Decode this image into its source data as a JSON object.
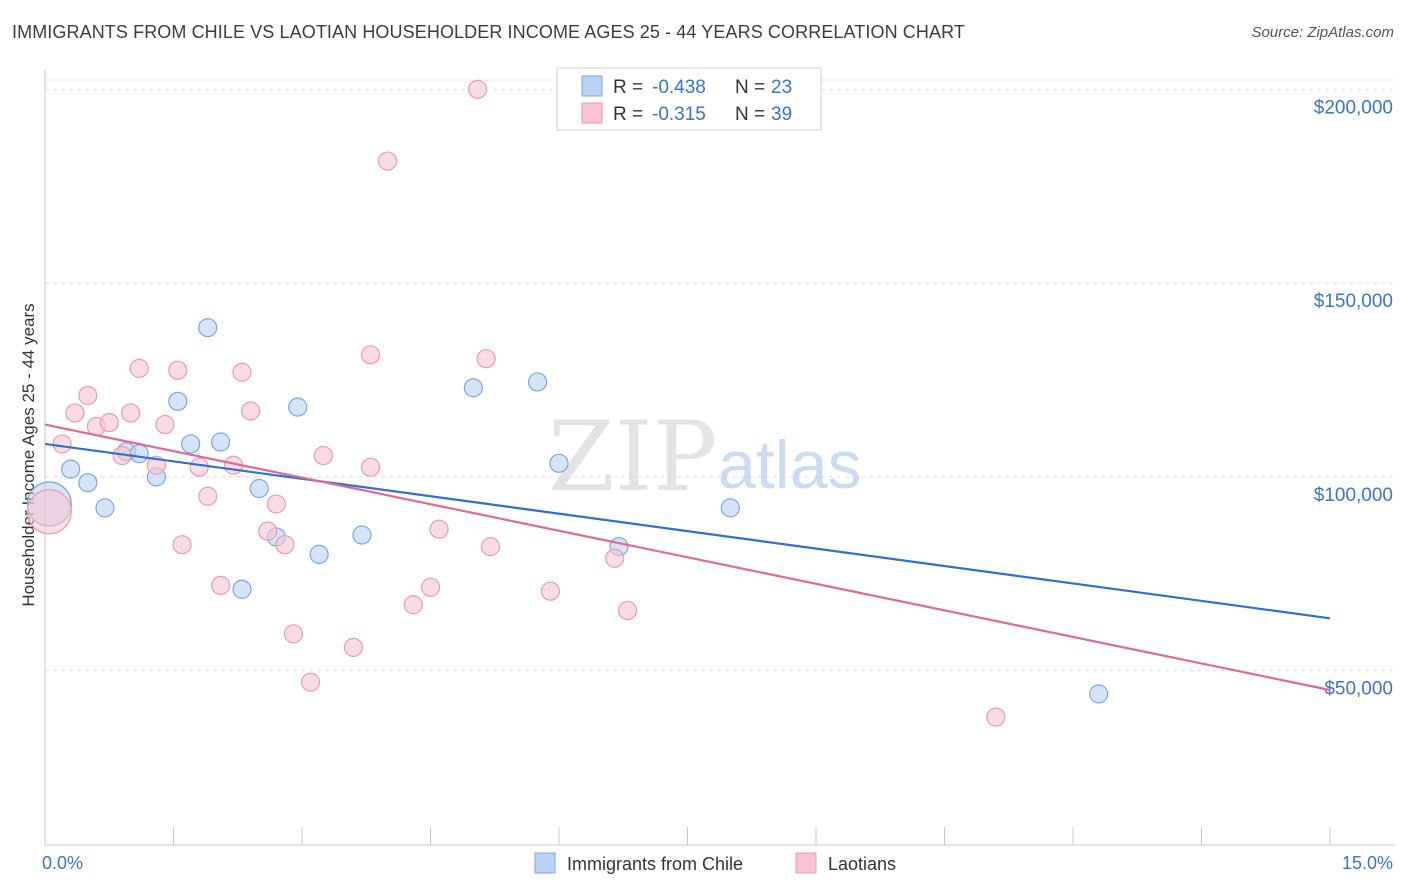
{
  "title": "IMMIGRANTS FROM CHILE VS LAOTIAN HOUSEHOLDER INCOME AGES 25 - 44 YEARS CORRELATION CHART",
  "source": "Source: ZipAtlas.com",
  "watermark": {
    "zip": "ZIP",
    "atlas": "atlas"
  },
  "colors": {
    "blue_fill": "#b9d2f3",
    "blue_stroke": "#7aa6e0",
    "blue_line": "#2f6fd0",
    "pink_fill": "#f8c4d3",
    "pink_stroke": "#e89ab2",
    "pink_line": "#e0679a",
    "grid": "#dddddd",
    "tick_text": "#3a73c8"
  },
  "legend": {
    "rows": [
      {
        "r_label": "R =",
        "r_value": "-0.438",
        "n_label": "N =",
        "n_value": "23",
        "series": "blue"
      },
      {
        "r_label": "R =",
        "r_value": "-0.315",
        "n_label": "N =",
        "n_value": "39",
        "series": "pink"
      }
    ]
  },
  "chart_data": {
    "type": "scatter",
    "title": "IMMIGRANTS FROM CHILE VS LAOTIAN HOUSEHOLDER INCOME AGES 25 - 44 YEARS CORRELATION CHART",
    "xlabel": "",
    "ylabel": "Householder Income Ages 25 - 44 years",
    "xlim": [
      0,
      15
    ],
    "ylim": [
      5000,
      205000
    ],
    "x_tick_labels": [
      "0.0%",
      "15.0%"
    ],
    "y_ticks": [
      50000,
      100000,
      150000,
      200000
    ],
    "y_tick_labels": [
      "$50,000",
      "$100,000",
      "$150,000",
      "$200,000"
    ],
    "grid": true,
    "legend_position": "bottom-center",
    "series": [
      {
        "name": "Immigrants from Chile",
        "color": "#b9d2f3",
        "trend": {
          "x": [
            0.0,
            15.0
          ],
          "y": [
            108500,
            63500
          ]
        },
        "points": [
          {
            "x": 0.05,
            "y": 93000,
            "big": true
          },
          {
            "x": 0.3,
            "y": 102000
          },
          {
            "x": 0.5,
            "y": 98500
          },
          {
            "x": 0.7,
            "y": 92000
          },
          {
            "x": 0.95,
            "y": 106500
          },
          {
            "x": 1.1,
            "y": 106000
          },
          {
            "x": 1.3,
            "y": 100000
          },
          {
            "x": 1.55,
            "y": 119500
          },
          {
            "x": 1.7,
            "y": 108500
          },
          {
            "x": 1.9,
            "y": 138500
          },
          {
            "x": 2.05,
            "y": 109000
          },
          {
            "x": 2.3,
            "y": 71000
          },
          {
            "x": 2.5,
            "y": 97000
          },
          {
            "x": 2.7,
            "y": 84500
          },
          {
            "x": 2.95,
            "y": 118000
          },
          {
            "x": 3.2,
            "y": 80000
          },
          {
            "x": 3.7,
            "y": 85000
          },
          {
            "x": 5.0,
            "y": 123000
          },
          {
            "x": 5.75,
            "y": 124500
          },
          {
            "x": 6.0,
            "y": 103500
          },
          {
            "x": 6.7,
            "y": 82000
          },
          {
            "x": 8.0,
            "y": 92000
          },
          {
            "x": 12.3,
            "y": 44000
          }
        ]
      },
      {
        "name": "Laotians",
        "color": "#f8c4d3",
        "trend": {
          "x": [
            0.0,
            15.0
          ],
          "y": [
            113500,
            45000
          ]
        },
        "points": [
          {
            "x": 0.05,
            "y": 91000,
            "big": true
          },
          {
            "x": 0.2,
            "y": 108500
          },
          {
            "x": 0.35,
            "y": 116500
          },
          {
            "x": 0.5,
            "y": 121000
          },
          {
            "x": 0.6,
            "y": 113000
          },
          {
            "x": 0.75,
            "y": 114000
          },
          {
            "x": 0.9,
            "y": 105500
          },
          {
            "x": 1.0,
            "y": 116500
          },
          {
            "x": 1.1,
            "y": 128000
          },
          {
            "x": 1.3,
            "y": 103000
          },
          {
            "x": 1.4,
            "y": 113500
          },
          {
            "x": 1.55,
            "y": 127500
          },
          {
            "x": 1.6,
            "y": 82500
          },
          {
            "x": 1.8,
            "y": 102500
          },
          {
            "x": 1.9,
            "y": 95000
          },
          {
            "x": 2.05,
            "y": 72000
          },
          {
            "x": 2.2,
            "y": 103000
          },
          {
            "x": 2.3,
            "y": 127000
          },
          {
            "x": 2.4,
            "y": 117000
          },
          {
            "x": 2.6,
            "y": 86000
          },
          {
            "x": 2.7,
            "y": 93000
          },
          {
            "x": 2.8,
            "y": 82500
          },
          {
            "x": 2.9,
            "y": 59500
          },
          {
            "x": 3.1,
            "y": 47000
          },
          {
            "x": 3.25,
            "y": 105500
          },
          {
            "x": 3.6,
            "y": 56000
          },
          {
            "x": 3.8,
            "y": 131500
          },
          {
            "x": 3.8,
            "y": 102500
          },
          {
            "x": 4.0,
            "y": 181500
          },
          {
            "x": 4.3,
            "y": 67000
          },
          {
            "x": 4.5,
            "y": 71500
          },
          {
            "x": 4.6,
            "y": 86500
          },
          {
            "x": 5.05,
            "y": 200000
          },
          {
            "x": 5.15,
            "y": 130500
          },
          {
            "x": 5.2,
            "y": 82000
          },
          {
            "x": 5.9,
            "y": 70500
          },
          {
            "x": 6.65,
            "y": 79000
          },
          {
            "x": 6.8,
            "y": 65500
          },
          {
            "x": 11.1,
            "y": 38000
          }
        ]
      }
    ]
  }
}
